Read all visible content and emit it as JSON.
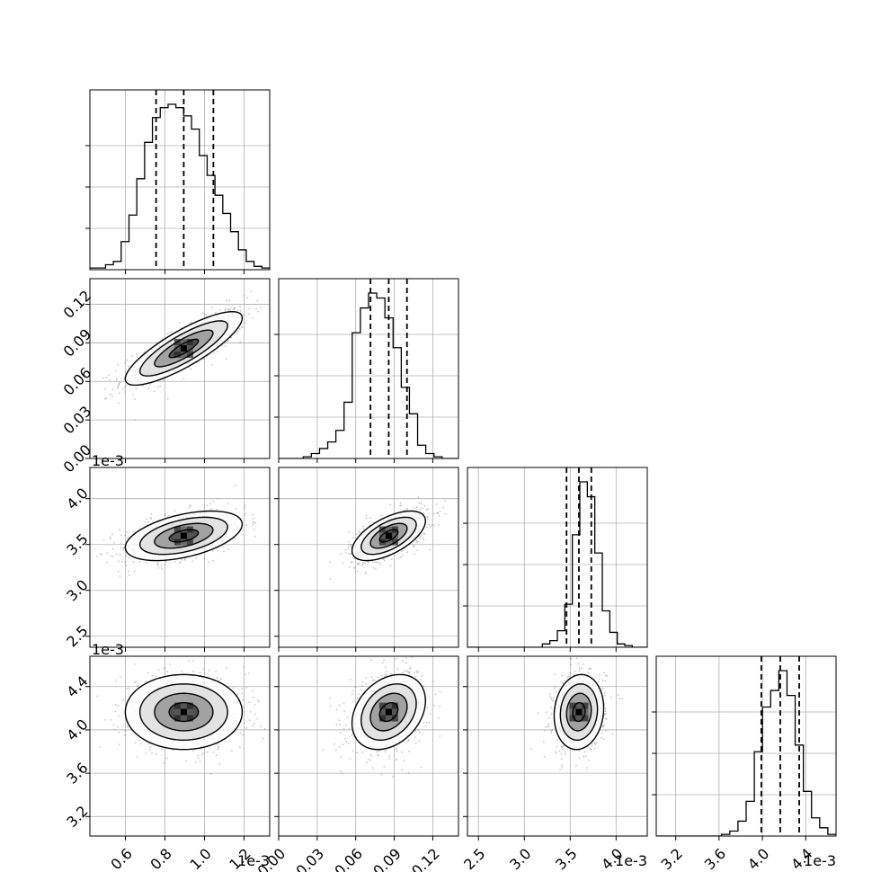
{
  "chart_data": {
    "type": "corner",
    "parameters": [
      {
        "ticks": [
          0.6,
          0.8,
          1.0,
          1.2
        ],
        "tick_labels": [
          "0.6",
          "0.8",
          "1.0",
          "1.2"
        ],
        "range": [
          0.42,
          1.33
        ],
        "offset_label": "1e-3",
        "quantiles": [
          0.755,
          0.895,
          1.045
        ]
      },
      {
        "ticks": [
          0.0,
          0.03,
          0.06,
          0.09,
          0.12
        ],
        "tick_labels": [
          "0.00",
          "0.03",
          "0.06",
          "0.09",
          "0.12"
        ],
        "range": [
          0.0,
          0.14
        ],
        "offset_label": "",
        "quantiles": [
          0.0715,
          0.0857,
          0.0999
        ]
      },
      {
        "ticks": [
          2.5,
          3.0,
          3.5,
          4.0
        ],
        "tick_labels": [
          "2.5",
          "3.0",
          "3.5",
          "4.0"
        ],
        "range": [
          2.38,
          4.34
        ],
        "offset_label": "1e-3",
        "quantiles": [
          3.46,
          3.595,
          3.73
        ]
      },
      {
        "ticks": [
          3.2,
          3.6,
          4.0,
          4.4
        ],
        "tick_labels": [
          "3.2",
          "3.6",
          "4.0",
          "4.4"
        ],
        "range": [
          3.02,
          4.68
        ],
        "offset_label": "1e-3",
        "quantiles": [
          3.99,
          4.165,
          4.34
        ]
      }
    ],
    "histograms": [
      [
        0.01,
        0.01,
        0.03,
        0.05,
        0.17,
        0.33,
        0.55,
        0.77,
        0.92,
        0.98,
        1.0,
        0.98,
        0.93,
        0.85,
        0.69,
        0.57,
        0.45,
        0.34,
        0.23,
        0.12,
        0.05,
        0.02,
        0.01
      ],
      [
        0.0,
        0.0,
        0.0,
        0.01,
        0.03,
        0.06,
        0.1,
        0.17,
        0.34,
        0.76,
        0.91,
        1.0,
        0.97,
        0.85,
        0.67,
        0.43,
        0.27,
        0.08,
        0.03,
        0.01,
        0.0,
        0.0
      ],
      [
        0.0,
        0.0,
        0.0,
        0.0,
        0.0,
        0.0,
        0.0,
        0.0,
        0.0,
        0.0,
        0.02,
        0.04,
        0.1,
        0.26,
        0.68,
        1.0,
        0.91,
        0.57,
        0.22,
        0.09,
        0.02,
        0.01,
        0.0,
        0.0
      ],
      [
        0.0,
        0.0,
        0.0,
        0.0,
        0.0,
        0.0,
        0.0,
        0.0,
        0.01,
        0.03,
        0.09,
        0.21,
        0.51,
        0.78,
        0.88,
        1.0,
        0.85,
        0.55,
        0.27,
        0.11,
        0.05,
        0.01
      ]
    ],
    "pairs": [
      {
        "x": 0,
        "y": 1,
        "mean": [
          0.895,
          0.0857
        ],
        "std": [
          0.148,
          0.0143
        ],
        "rho": 0.83
      },
      {
        "x": 0,
        "y": 2,
        "mean": [
          0.895,
          3.595
        ],
        "std": [
          0.148,
          0.135
        ],
        "rho": 0.47
      },
      {
        "x": 1,
        "y": 2,
        "mean": [
          0.0857,
          3.595
        ],
        "std": [
          0.0143,
          0.135
        ],
        "rho": 0.6
      },
      {
        "x": 0,
        "y": 3,
        "mean": [
          0.895,
          4.165
        ],
        "std": [
          0.148,
          0.173
        ],
        "rho": 0.0
      },
      {
        "x": 1,
        "y": 3,
        "mean": [
          0.0857,
          4.165
        ],
        "std": [
          0.0143,
          0.173
        ],
        "rho": 0.3
      },
      {
        "x": 2,
        "y": 3,
        "mean": [
          3.595,
          4.165
        ],
        "std": [
          0.135,
          0.173
        ],
        "rho": 0.1
      }
    ],
    "contour_levels": [
      0.5,
      1.0,
      1.5,
      2.0
    ],
    "grid": true,
    "colors": {
      "line": "#000000",
      "grid": "#b0b0b0",
      "points": "#7f7f7f",
      "density": "#000000"
    }
  }
}
